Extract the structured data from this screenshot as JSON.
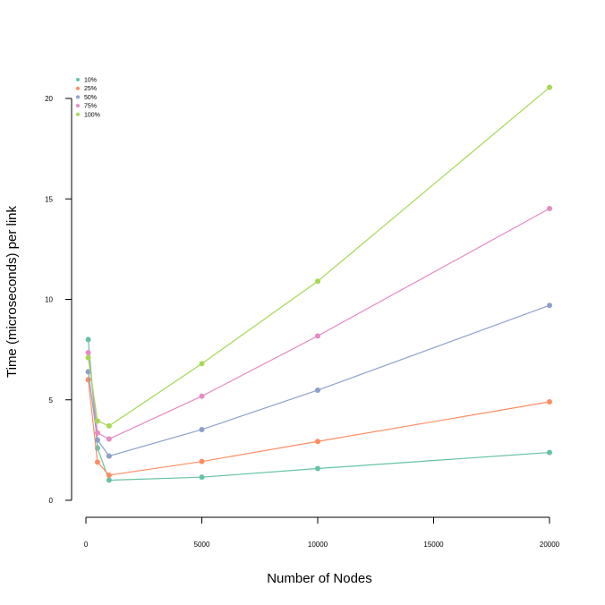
{
  "chart_data": {
    "type": "line",
    "title": "",
    "xlabel": "Number of Nodes",
    "ylabel": "Time (microseconds) per link",
    "x": [
      100,
      500,
      1000,
      5000,
      10000,
      20000
    ],
    "xticks": [
      0,
      5000,
      10000,
      15000,
      20000
    ],
    "yticks": [
      0,
      5,
      10,
      15,
      20
    ],
    "xlim": [
      0,
      20000
    ],
    "ylim": [
      0,
      20.5
    ],
    "grid": false,
    "legend_position": "top-left",
    "series": [
      {
        "name": "10%",
        "color": "#66c2a5",
        "values": [
          8.0,
          2.6,
          1.0,
          1.15,
          1.58,
          2.38
        ]
      },
      {
        "name": "25%",
        "color": "#fc8d62",
        "values": [
          6.0,
          1.9,
          1.25,
          1.93,
          2.93,
          4.9
        ]
      },
      {
        "name": "50%",
        "color": "#8da0cb",
        "values": [
          6.4,
          3.0,
          2.2,
          3.52,
          5.48,
          9.7
        ]
      },
      {
        "name": "75%",
        "color": "#e78ac3",
        "values": [
          7.35,
          3.35,
          3.05,
          5.18,
          8.18,
          14.52
        ]
      },
      {
        "name": "100%",
        "color": "#a6d854",
        "values": [
          7.1,
          3.95,
          3.7,
          6.8,
          10.9,
          20.55
        ]
      }
    ]
  }
}
